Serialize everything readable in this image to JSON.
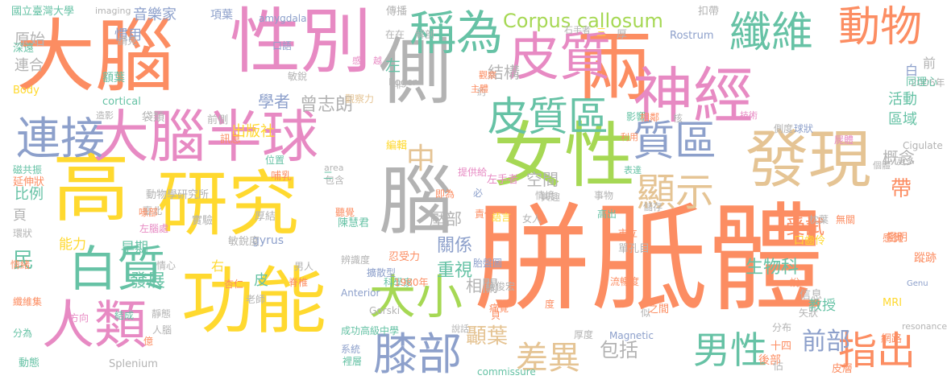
{
  "palette": {
    "orange": "#fc8d62",
    "green": "#66c2a5",
    "purple": "#8da0cb",
    "pink": "#e78ac3",
    "lime": "#a6d854",
    "yellow": "#ffd92f",
    "tan": "#e5c494",
    "gray": "#b3b3b3"
  },
  "words": [
    {
      "text": "胼胝體",
      "color": "orange"
    },
    {
      "text": "大腦",
      "color": "orange"
    },
    {
      "text": "性別",
      "color": "pink"
    },
    {
      "text": "兩",
      "color": "orange"
    },
    {
      "text": "神經",
      "color": "pink"
    },
    {
      "text": "側",
      "color": "gray"
    },
    {
      "text": "女性",
      "color": "lime"
    },
    {
      "text": "發現",
      "color": "tan"
    },
    {
      "text": "高",
      "color": "yellow"
    },
    {
      "text": "研究",
      "color": "yellow"
    },
    {
      "text": "腦",
      "color": "gray"
    },
    {
      "text": "功能",
      "color": "yellow"
    },
    {
      "text": "大腦半球",
      "color": "pink"
    },
    {
      "text": "皮質",
      "color": "pink"
    },
    {
      "text": "稱為",
      "color": "green"
    },
    {
      "text": "纖維",
      "color": "green"
    },
    {
      "text": "動物",
      "color": "orange"
    },
    {
      "text": "皮質區",
      "color": "green"
    },
    {
      "text": "連接",
      "color": "purple"
    },
    {
      "text": "白質",
      "color": "green"
    },
    {
      "text": "人類",
      "color": "pink"
    },
    {
      "text": "大小",
      "color": "lime"
    },
    {
      "text": "膝部",
      "color": "purple"
    },
    {
      "text": "質區",
      "color": "purple"
    },
    {
      "text": "顯示",
      "color": "tan"
    },
    {
      "text": "中",
      "color": "tan"
    },
    {
      "text": "Corpus callosum",
      "color": "lime"
    },
    {
      "text": "男性",
      "color": "green"
    },
    {
      "text": "指出",
      "color": "orange"
    },
    {
      "text": "差異",
      "color": "tan"
    },
    {
      "text": "前部",
      "color": "purple"
    },
    {
      "text": "顳葉",
      "color": "tan"
    },
    {
      "text": "包括",
      "color": "gray"
    },
    {
      "text": "關係",
      "color": "purple"
    },
    {
      "text": "重視",
      "color": "green"
    },
    {
      "text": "相關",
      "color": "gray"
    },
    {
      "text": "結構",
      "color": "gray"
    },
    {
      "text": "空間",
      "color": "gray"
    },
    {
      "text": "壓部",
      "color": "gray"
    },
    {
      "text": "學者",
      "color": "purple"
    },
    {
      "text": "曾志朗",
      "color": "gray"
    },
    {
      "text": "出版社",
      "color": "yellow"
    },
    {
      "text": "音樂家",
      "color": "purple"
    },
    {
      "text": "慣用",
      "color": "purple"
    },
    {
      "text": "原始",
      "color": "gray"
    },
    {
      "text": "連合",
      "color": "gray"
    },
    {
      "text": "比例",
      "color": "green"
    },
    {
      "text": "早期",
      "color": "green"
    },
    {
      "text": "能力",
      "color": "yellow"
    },
    {
      "text": "民",
      "color": "green"
    },
    {
      "text": "發展",
      "color": "green"
    },
    {
      "text": "右",
      "color": "yellow"
    },
    {
      "text": "皮",
      "color": "green"
    },
    {
      "text": "活動",
      "color": "green"
    },
    {
      "text": "區域",
      "color": "green"
    },
    {
      "text": "概念",
      "color": "gray"
    },
    {
      "text": "帶",
      "color": "orange"
    },
    {
      "text": "受試",
      "color": "orange"
    },
    {
      "text": "生物科",
      "color": "green"
    },
    {
      "text": "教授",
      "color": "green"
    },
    {
      "text": "左",
      "color": "green"
    },
    {
      "text": "前",
      "color": "gray"
    },
    {
      "text": "白",
      "color": "purple"
    },
    {
      "text": "頁",
      "color": "gray"
    },
    {
      "text": "國立臺灣大學",
      "color": "green"
    },
    {
      "text": "imaging",
      "color": "gray"
    },
    {
      "text": "項葉",
      "color": "purple"
    },
    {
      "text": "amygdala",
      "color": "purple"
    },
    {
      "text": "傳播",
      "color": "gray"
    },
    {
      "text": "扣帶",
      "color": "gray"
    },
    {
      "text": "Rostrum",
      "color": "purple"
    },
    {
      "text": "請見",
      "color": "gray"
    },
    {
      "text": "口語",
      "color": "purple"
    },
    {
      "text": "深遠",
      "color": "green"
    },
    {
      "text": "額葉",
      "color": "green"
    },
    {
      "text": "Body",
      "color": "yellow"
    },
    {
      "text": "cortical",
      "color": "green"
    },
    {
      "text": "造影",
      "color": "gray"
    },
    {
      "text": "袋類",
      "color": "gray"
    },
    {
      "text": "前側",
      "color": "gray"
    },
    {
      "text": "訊息",
      "color": "orange"
    },
    {
      "text": "敏銳",
      "color": "gray"
    },
    {
      "text": "觀察力",
      "color": "tan"
    },
    {
      "text": "Roger",
      "color": "gray"
    },
    {
      "text": "位置",
      "color": "green"
    },
    {
      "text": "哺乳",
      "color": "orange"
    },
    {
      "text": "動物學研究所",
      "color": "gray"
    },
    {
      "text": "臺北",
      "color": "gray"
    },
    {
      "text": "實驗",
      "color": "gray"
    },
    {
      "text": "厚結",
      "color": "gray"
    },
    {
      "text": "陳慧君",
      "color": "green"
    },
    {
      "text": "gyrus",
      "color": "purple"
    },
    {
      "text": "敏銳度",
      "color": "gray"
    },
    {
      "text": "男人",
      "color": "gray"
    },
    {
      "text": "延伸狀",
      "color": "orange"
    },
    {
      "text": "磁共振",
      "color": "green"
    },
    {
      "text": "環狀",
      "color": "gray"
    },
    {
      "text": "情緒",
      "color": "orange"
    },
    {
      "text": "纖維集",
      "color": "orange"
    },
    {
      "text": "分為",
      "color": "green"
    },
    {
      "text": "方向",
      "color": "pink"
    },
    {
      "text": "結成",
      "color": "green"
    },
    {
      "text": "靜態",
      "color": "gray"
    },
    {
      "text": "人腦",
      "color": "gray"
    },
    {
      "text": "億",
      "color": "orange"
    },
    {
      "text": "動態",
      "color": "green"
    },
    {
      "text": "Splenium",
      "color": "gray"
    },
    {
      "text": "成功高級中學",
      "color": "green"
    },
    {
      "text": "系統",
      "color": "purple"
    },
    {
      "text": "Anterior",
      "color": "purple"
    },
    {
      "text": "裡層",
      "color": "green"
    },
    {
      "text": "擴散型",
      "color": "purple"
    },
    {
      "text": "科學家",
      "color": "green"
    },
    {
      "text": "Gorski",
      "color": "gray"
    },
    {
      "text": "脊椎",
      "color": "orange"
    },
    {
      "text": "老師",
      "color": "gray"
    },
    {
      "text": "杏仁",
      "color": "orange"
    },
    {
      "text": "情心",
      "color": "gray"
    },
    {
      "text": "左腦處",
      "color": "pink"
    },
    {
      "text": "喙部",
      "color": "orange"
    },
    {
      "text": "皮層",
      "color": "orange"
    },
    {
      "text": "Cigulate",
      "color": "gray"
    },
    {
      "text": "Genu",
      "color": "purple"
    },
    {
      "text": "resonance",
      "color": "gray"
    },
    {
      "text": "MRI",
      "color": "yellow"
    },
    {
      "text": "網路",
      "color": "orange"
    },
    {
      "text": "後部",
      "color": "orange"
    },
    {
      "text": "commissure",
      "color": "green"
    },
    {
      "text": "Magnetic",
      "color": "purple"
    },
    {
      "text": "陳俊宏",
      "color": "gray"
    },
    {
      "text": "胎盤圖",
      "color": "purple"
    },
    {
      "text": "單孔目",
      "color": "gray"
    },
    {
      "text": "市立",
      "color": "orange"
    },
    {
      "text": "流暢度",
      "color": "orange"
    },
    {
      "text": "口齒伶",
      "color": "yellow"
    },
    {
      "text": "枕葉",
      "color": "gray"
    },
    {
      "text": "無關",
      "color": "orange"
    },
    {
      "text": "感覺",
      "color": "orange"
    },
    {
      "text": "鑑明",
      "color": "orange"
    },
    {
      "text": "蹤跡",
      "color": "orange"
    },
    {
      "text": "說",
      "color": "orange"
    },
    {
      "text": "信息",
      "color": "gray"
    },
    {
      "text": "矢狀",
      "color": "gray"
    },
    {
      "text": "分布",
      "color": "gray"
    },
    {
      "text": "十四",
      "color": "orange"
    },
    {
      "text": "佔",
      "color": "gray"
    },
    {
      "text": "之間",
      "color": "orange"
    },
    {
      "text": "似",
      "color": "gray"
    },
    {
      "text": "厚度",
      "color": "gray"
    },
    {
      "text": "度",
      "color": "orange"
    },
    {
      "text": "貝",
      "color": "orange"
    },
    {
      "text": "痛覺",
      "color": "orange"
    },
    {
      "text": "說話",
      "color": "gray"
    },
    {
      "text": "1980年",
      "color": "orange"
    },
    {
      "text": "忍受力",
      "color": "orange"
    },
    {
      "text": "責任",
      "color": "orange"
    },
    {
      "text": "語言",
      "color": "yellow"
    },
    {
      "text": "女人",
      "color": "gray"
    },
    {
      "text": "情境",
      "color": "gray"
    },
    {
      "text": "即為",
      "color": "orange"
    },
    {
      "text": "提供給",
      "color": "pink"
    },
    {
      "text": "興趣",
      "color": "gray"
    },
    {
      "text": "必",
      "color": "purple"
    },
    {
      "text": "左手者",
      "color": "pink"
    },
    {
      "text": "聽覺",
      "color": "orange"
    },
    {
      "text": "事物",
      "color": "gray"
    },
    {
      "text": "高出",
      "color": "green"
    },
    {
      "text": "表達",
      "color": "green"
    },
    {
      "text": "儲存",
      "color": "gray"
    },
    {
      "text": "影響",
      "color": "green"
    },
    {
      "text": "利用",
      "color": "orange"
    },
    {
      "text": "相鄰",
      "color": "orange"
    },
    {
      "text": "核",
      "color": "gray"
    },
    {
      "text": "技術",
      "color": "pink"
    },
    {
      "text": "側度",
      "color": "gray"
    },
    {
      "text": "球狀",
      "color": "purple"
    },
    {
      "text": "屍體",
      "color": "pink"
    },
    {
      "text": "個體",
      "color": "gray"
    },
    {
      "text": "更多",
      "color": "gray"
    },
    {
      "text": "2006年",
      "color": "gray"
    },
    {
      "text": "同理心",
      "color": "green"
    },
    {
      "text": "厚",
      "color": "gray"
    },
    {
      "text": "三",
      "color": "yellow"
    },
    {
      "text": "石手者",
      "color": "gray"
    },
    {
      "text": "在在",
      "color": "gray"
    },
    {
      "text": "解剖",
      "color": "gray"
    },
    {
      "text": "觀察",
      "color": "orange"
    },
    {
      "text": "約",
      "color": "gray"
    },
    {
      "text": "主體",
      "color": "orange"
    },
    {
      "text": "非",
      "color": "gray"
    },
    {
      "text": "越",
      "color": "pink"
    },
    {
      "text": "感",
      "color": "pink"
    },
    {
      "text": "area",
      "color": "gray"
    },
    {
      "text": "編輯",
      "color": "yellow"
    },
    {
      "text": "包含",
      "color": "gray"
    },
    {
      "text": "二",
      "color": "green"
    },
    {
      "text": "辨識度",
      "color": "gray"
    }
  ]
}
